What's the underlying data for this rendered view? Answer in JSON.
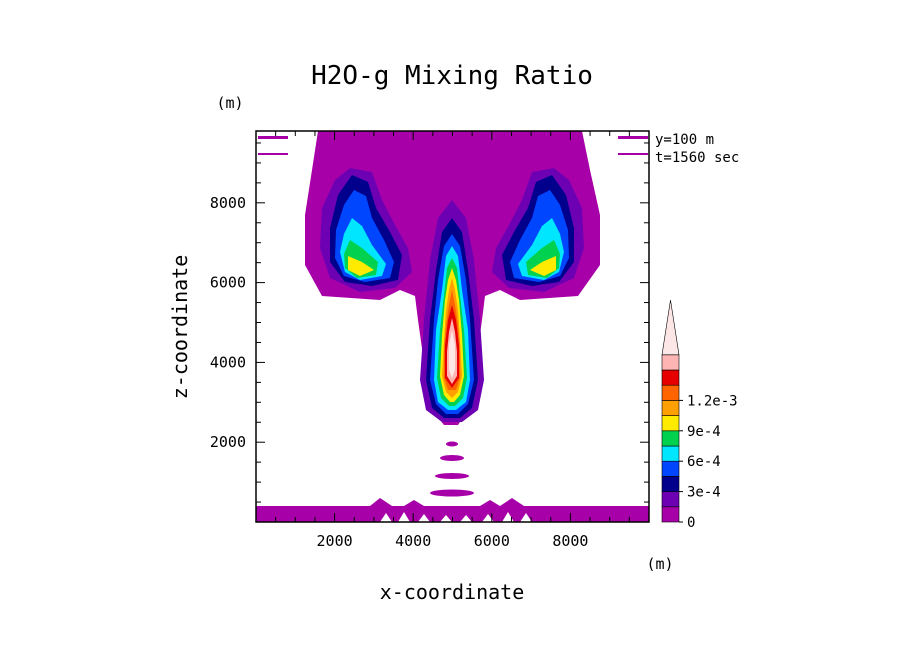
{
  "chart_data": {
    "type": "contour",
    "title": "H2O-g Mixing Ratio",
    "xlabel": "x-coordinate",
    "ylabel": "z-coordinate",
    "x_unit": "(m)",
    "y_unit": "(m)",
    "xlim": [
      0,
      10000
    ],
    "ylim": [
      0,
      9800
    ],
    "x_ticks": [
      "2000",
      "4000",
      "6000",
      "8000"
    ],
    "y_ticks": [
      "2000",
      "4000",
      "6000",
      "8000"
    ],
    "info_lines": [
      "y=100 m",
      "t=1560 sec"
    ],
    "colorbar": {
      "levels": [
        "0",
        "1.5e-4",
        "3e-4",
        "4.5e-4",
        "6e-4",
        "7.5e-4",
        "9e-4",
        "1.05e-3",
        "1.2e-3",
        "1.35e-3"
      ],
      "labels": [
        "0",
        "3e-4",
        "6e-4",
        "9e-4",
        "1.2e-3"
      ],
      "label_values": [
        0,
        0.0003,
        0.0006,
        0.0009,
        0.0012
      ],
      "max_value": 0.0015,
      "colors": [
        "#a800a8",
        "#6e00b4",
        "#00008c",
        "#0046ff",
        "#00e6ff",
        "#00d250",
        "#ffeb00",
        "#ffa000",
        "#ff6400",
        "#e60000",
        "#ffb4b4",
        "#fde6e6"
      ]
    },
    "features": [
      {
        "name": "column",
        "x": 5000,
        "z_bottom": 2600,
        "z_top": 7700,
        "peak_level": 11
      },
      {
        "name": "left-lobe",
        "x": 3000,
        "z": 6600,
        "peak_level": 6
      },
      {
        "name": "right-lobe",
        "x": 7000,
        "z": 6600,
        "peak_level": 6
      },
      {
        "name": "ground-layer",
        "z_top": 400,
        "peak_level": 0
      }
    ]
  }
}
